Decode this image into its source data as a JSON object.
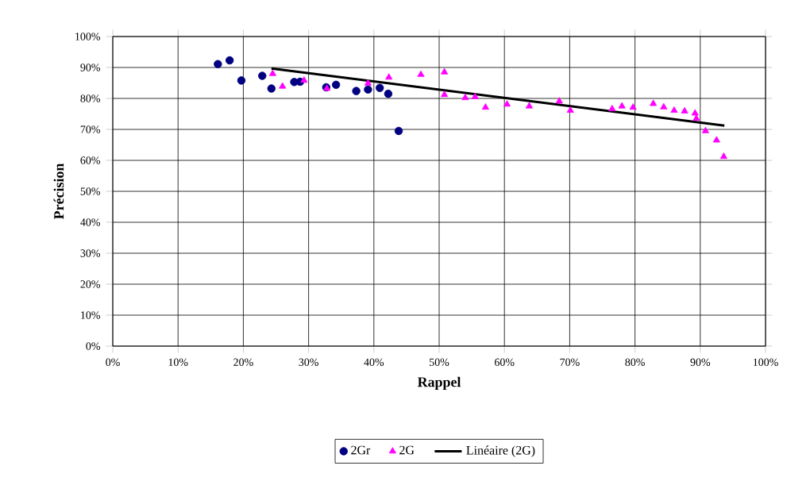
{
  "chart_data": {
    "type": "scatter",
    "xlabel": "Rappel",
    "ylabel": "Précision",
    "xlim": [
      0,
      100
    ],
    "ylim": [
      0,
      100
    ],
    "xticks": [
      {
        "value": 0,
        "label": "0%"
      },
      {
        "value": 10,
        "label": "10%"
      },
      {
        "value": 20,
        "label": "20%"
      },
      {
        "value": 30,
        "label": "30%"
      },
      {
        "value": 40,
        "label": "40%"
      },
      {
        "value": 50,
        "label": "50%"
      },
      {
        "value": 60,
        "label": "60%"
      },
      {
        "value": 70,
        "label": "70%"
      },
      {
        "value": 80,
        "label": "80%"
      },
      {
        "value": 90,
        "label": "90%"
      },
      {
        "value": 100,
        "label": "100%"
      }
    ],
    "yticks": [
      {
        "value": 0,
        "label": "0%"
      },
      {
        "value": 10,
        "label": "10%"
      },
      {
        "value": 20,
        "label": "20%"
      },
      {
        "value": 30,
        "label": "30%"
      },
      {
        "value": 40,
        "label": "40%"
      },
      {
        "value": 50,
        "label": "50%"
      },
      {
        "value": 60,
        "label": "60%"
      },
      {
        "value": 70,
        "label": "70%"
      },
      {
        "value": 80,
        "label": "80%"
      },
      {
        "value": 90,
        "label": "90%"
      },
      {
        "value": 100,
        "label": "100%"
      }
    ],
    "grid": true,
    "legend": "bottom",
    "series": [
      {
        "name": "2Gr",
        "marker": "circle",
        "color": "#000080",
        "x": [
          16.1,
          17.9,
          19.7,
          22.9,
          24.3,
          27.8,
          28.7,
          32.7,
          34.2,
          37.3,
          39.1,
          40.9,
          42.2,
          43.8
        ],
        "values": [
          91.1,
          92.3,
          85.8,
          87.3,
          83.2,
          85.3,
          85.4,
          83.6,
          84.4,
          82.4,
          82.9,
          83.4,
          81.5,
          69.5
        ]
      },
      {
        "name": "2G",
        "marker": "triangle",
        "color": "#ff00ff",
        "x": [
          24.5,
          26.0,
          29.3,
          32.8,
          39.1,
          42.3,
          47.2,
          50.8,
          50.8,
          54.0,
          55.5,
          57.1,
          60.4,
          63.8,
          68.4,
          70.1,
          76.5,
          78.0,
          79.7,
          82.8,
          84.4,
          86.0,
          87.6,
          89.2,
          89.4,
          90.8,
          92.5,
          93.6
        ],
        "values": [
          88.0,
          83.9,
          85.8,
          83.2,
          84.9,
          86.8,
          87.7,
          88.5,
          81.2,
          80.2,
          80.5,
          77.1,
          78.1,
          77.5,
          79.1,
          76.1,
          76.6,
          77.5,
          77.1,
          78.3,
          77.2,
          76.1,
          75.9,
          75.2,
          73.5,
          69.5,
          66.5,
          61.2
        ]
      },
      {
        "name": "Linéaire (2G)",
        "type": "line",
        "marker": "none",
        "line_style": "solid",
        "color": "#000000",
        "x": [
          24.3,
          93.7
        ],
        "values": [
          89.7,
          71.2
        ]
      }
    ]
  }
}
